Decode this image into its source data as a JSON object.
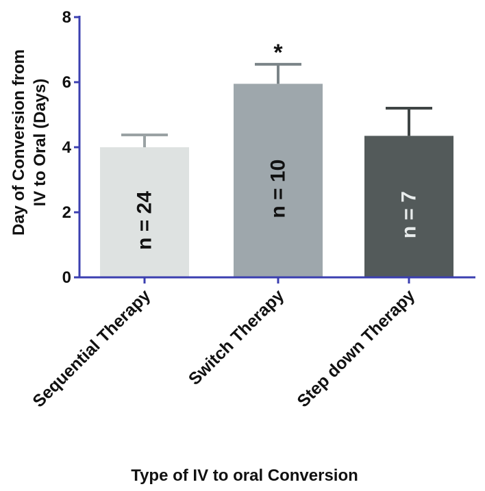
{
  "chart_data": {
    "type": "bar",
    "title": "",
    "xlabel": "Type of IV to oral Conversion",
    "ylabel_lines": [
      "Day of Conversion from",
      "IV to Oral (Days)"
    ],
    "ylim": [
      0,
      8
    ],
    "yticks": [
      0,
      2,
      4,
      6,
      8
    ],
    "ytick_labels": [
      "0",
      "2",
      "4",
      "6",
      "8"
    ],
    "categories": [
      "Sequential Therapy",
      "Switch Therapy",
      "Step down Therapy"
    ],
    "values": [
      4.0,
      5.95,
      4.35
    ],
    "errors": [
      0.38,
      0.6,
      0.85
    ],
    "bar_labels": [
      "n = 24",
      "n = 10",
      "n = 7"
    ],
    "significance": [
      "",
      "*",
      ""
    ],
    "colors": {
      "bars": [
        "#dee2e1",
        "#9ea7ac",
        "#535a5a"
      ],
      "bar_label_text": [
        "#111111",
        "#111111",
        "#e8ecec"
      ],
      "axis": "#3b3fb0",
      "error_bars": [
        "#9aa2a4",
        "#7b8488",
        "#3f4545"
      ]
    }
  }
}
